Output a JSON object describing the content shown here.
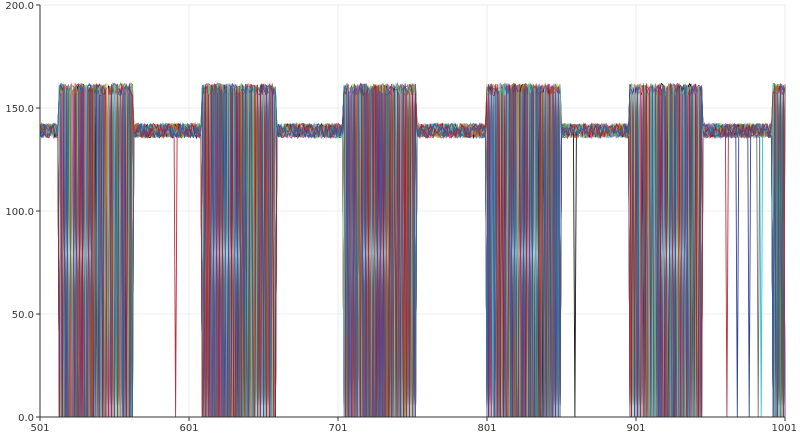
{
  "chart_data": {
    "type": "line",
    "title": "",
    "xlabel": "",
    "ylabel": "",
    "xlim": [
      501,
      1001
    ],
    "ylim": [
      0.0,
      200.0
    ],
    "x_ticks": [
      "501",
      "601",
      "701",
      "801",
      "901",
      "1001"
    ],
    "y_ticks": [
      "0.0",
      "50.0",
      "100.0",
      "150.0",
      "200.0"
    ],
    "grid": true,
    "legend": "none",
    "baseline_value": 139,
    "high_value": 159,
    "high_windows": [
      [
        514,
        563
      ],
      [
        610,
        659
      ],
      [
        705,
        753
      ],
      [
        801,
        850
      ],
      [
        897,
        945
      ],
      [
        993,
        1001
      ]
    ],
    "series_count": 24,
    "series_colors": [
      "#1f77b4",
      "#ff7f0e",
      "#2ca02c",
      "#d62728",
      "#9467bd",
      "#8c564b",
      "#e377c2",
      "#7f7f7f",
      "#bcbd22",
      "#17becf",
      "#000000",
      "#1a2f8c",
      "#e6a72e",
      "#4daf4a",
      "#984ea3",
      "#ff3399",
      "#00a0a0",
      "#a6761d",
      "#666666",
      "#cc4c02",
      "#5e3c99",
      "#66c2a5",
      "#b2182b",
      "#2166ac"
    ]
  }
}
